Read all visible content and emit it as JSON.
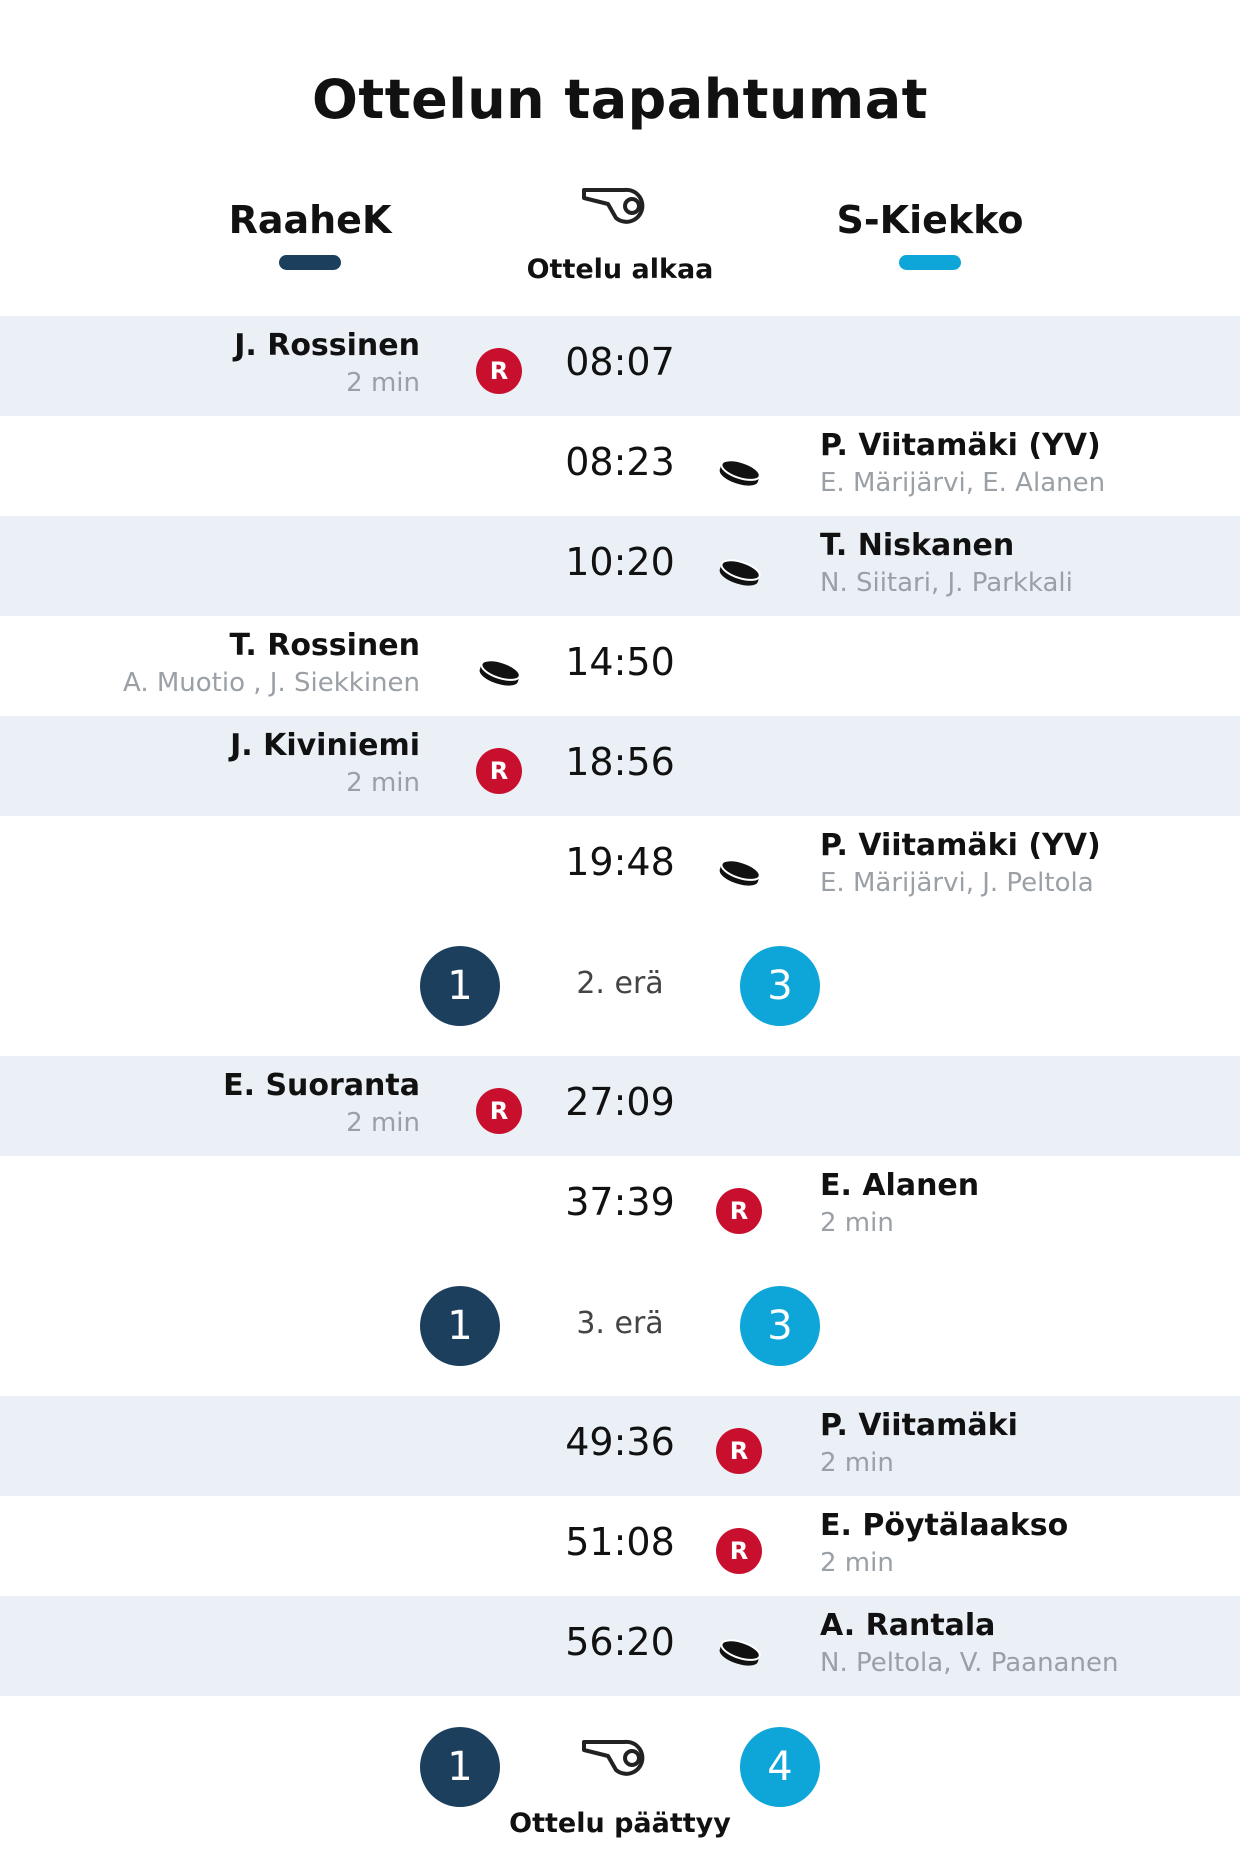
{
  "title": "Ottelun tapahtumat",
  "teams": {
    "home": {
      "name": "RaaheK",
      "color": "#1c3f5e"
    },
    "away": {
      "name": "S-Kiekko",
      "color": "#0ea5d9"
    }
  },
  "start_label": "Ottelu alkaa",
  "end_label": "Ottelu päättyy",
  "penalty_badge": "R",
  "events": [
    {
      "time": "08:07",
      "side": "home",
      "type": "penalty",
      "player": "J. Rossinen",
      "detail": "2 min"
    },
    {
      "time": "08:23",
      "side": "away",
      "type": "goal",
      "player": "P. Viitamäki (YV)",
      "detail": "E. Märijärvi, E. Alanen"
    },
    {
      "time": "10:20",
      "side": "away",
      "type": "goal",
      "player": "T. Niskanen",
      "detail": "N. Siitari, J. Parkkali"
    },
    {
      "time": "14:50",
      "side": "home",
      "type": "goal",
      "player": "T. Rossinen",
      "detail": "A. Muotio , J. Siekkinen"
    },
    {
      "time": "18:56",
      "side": "home",
      "type": "penalty",
      "player": "J. Kiviniemi",
      "detail": "2 min"
    },
    {
      "time": "19:48",
      "side": "away",
      "type": "goal",
      "player": "P. Viitamäki (YV)",
      "detail": "E. Märijärvi, J. Peltola"
    },
    {
      "time": "27:09",
      "side": "home",
      "type": "penalty",
      "player": "E. Suoranta",
      "detail": "2 min"
    },
    {
      "time": "37:39",
      "side": "away",
      "type": "penalty",
      "player": "E. Alanen",
      "detail": "2 min"
    },
    {
      "time": "49:36",
      "side": "away",
      "type": "penalty",
      "player": "P. Viitamäki",
      "detail": "2 min"
    },
    {
      "time": "51:08",
      "side": "away",
      "type": "penalty",
      "player": "E. Pöytälaakso",
      "detail": "2 min"
    },
    {
      "time": "56:20",
      "side": "away",
      "type": "goal",
      "player": "A. Rantala",
      "detail": "N. Peltola, V. Paananen"
    }
  ],
  "periods": [
    {
      "label": "2. erä",
      "home": "1",
      "away": "3"
    },
    {
      "label": "3. erä",
      "home": "1",
      "away": "3"
    }
  ],
  "final_score": {
    "home": "1",
    "away": "4"
  }
}
